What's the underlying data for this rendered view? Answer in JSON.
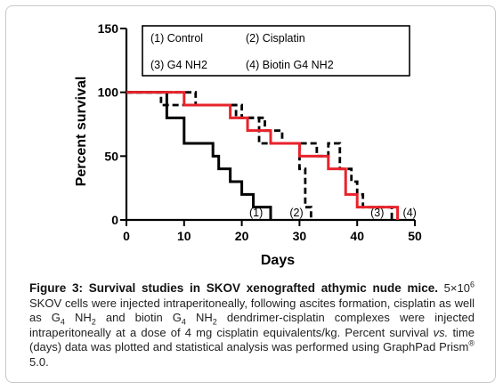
{
  "chart_data": {
    "type": "line",
    "subtype": "step",
    "xlabel": "Days",
    "ylabel": "Percent survival",
    "xlim": [
      0,
      50
    ],
    "ylim": [
      0,
      150
    ],
    "xticks": [
      0,
      10,
      20,
      30,
      40,
      50
    ],
    "yticks": [
      0,
      50,
      100,
      150
    ],
    "grid": false,
    "legend_position": "top",
    "legend": [
      "(1) Control",
      "(2) Cisplatin",
      "(3) G4 NH2",
      "(4) Biotin G4 NH2"
    ],
    "series": [
      {
        "name": "(1) Control",
        "color": "#000000",
        "style": "solid",
        "end_label": "(1)",
        "x": [
          0,
          7,
          10,
          15,
          16,
          18,
          20,
          22,
          25
        ],
        "y": [
          100,
          80,
          60,
          50,
          40,
          30,
          20,
          10,
          0
        ]
      },
      {
        "name": "(2) Cisplatin",
        "color": "#000000",
        "style": "dashed",
        "end_label": "(2)",
        "x": [
          0,
          6,
          20,
          23,
          30,
          31,
          32
        ],
        "y": [
          100,
          90,
          80,
          60,
          40,
          10,
          0
        ]
      },
      {
        "name": "(3) G4 NH2",
        "color": "#000000",
        "style": "dashed",
        "end_label": "(3)",
        "x": [
          0,
          12,
          19,
          24,
          27,
          33,
          35,
          37,
          39,
          40,
          41,
          42,
          46
        ],
        "y": [
          100,
          90,
          80,
          70,
          60,
          50,
          60,
          40,
          30,
          20,
          10,
          10,
          0
        ]
      },
      {
        "name": "(4) Biotin G4 NH2",
        "color": "#e8232b",
        "style": "solid",
        "end_label": "(4)",
        "x": [
          0,
          10,
          18,
          21,
          25,
          30,
          35,
          38,
          40,
          47
        ],
        "y": [
          100,
          90,
          80,
          70,
          60,
          50,
          40,
          20,
          10,
          0
        ]
      }
    ]
  },
  "caption": {
    "title": "Figure 3: Survival studies in SKOV xenografted athymic nude mice.",
    "body_parts": [
      "5×10",
      "6",
      " SKOV cells were injected intraperitoneally, following ascites formation, cisplatin as well as G",
      "4",
      " NH",
      "2",
      " and biotin G",
      "4",
      " NH",
      "2",
      " dendrimer-cisplatin complexes were injected intraperitoneally at a dose of 4 mg cisplatin equivalents/kg. Percent survival ",
      "vs.",
      " time (days) data was plotted and statistical analysis was performed using GraphPad Prism",
      "®",
      " 5.0."
    ]
  }
}
